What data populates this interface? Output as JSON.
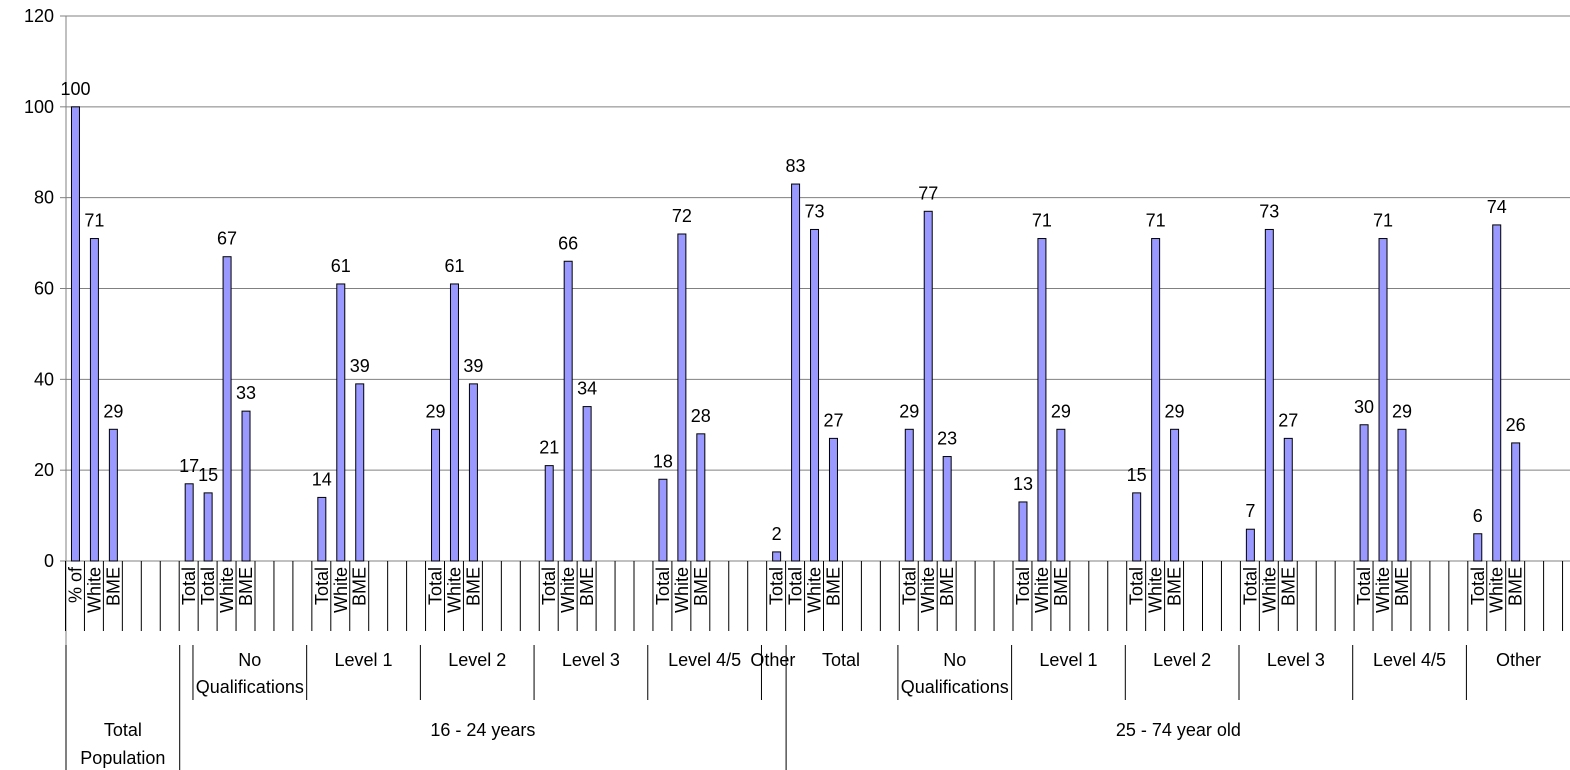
{
  "chart_data": {
    "type": "bar",
    "title": "",
    "xlabel": "",
    "ylabel": "",
    "ylim": [
      0,
      120
    ],
    "yticks": [
      0,
      20,
      40,
      60,
      80,
      100,
      120
    ],
    "grid": true,
    "legend": "none",
    "colors": {
      "bar_fill": "#9999ff",
      "bar_stroke": "#000000",
      "grid": "#808080",
      "axis": "#808080"
    },
    "groups": [
      {
        "label": "Total Population",
        "subgroups": [
          {
            "label": "",
            "bars": [
              {
                "label": "% of",
                "value": 100
              },
              {
                "label": "White",
                "value": 71
              },
              {
                "label": "BME",
                "value": 29
              }
            ]
          }
        ]
      },
      {
        "label": "16 - 24 years",
        "subgroups": [
          {
            "label": "",
            "bars": [
              {
                "label": "Total",
                "value": 17
              }
            ]
          },
          {
            "label": "No Qualifications",
            "bars": [
              {
                "label": "Total",
                "value": 15
              },
              {
                "label": "White",
                "value": 67
              },
              {
                "label": "BME",
                "value": 33
              }
            ]
          },
          {
            "label": "Level 1",
            "bars": [
              {
                "label": "Total",
                "value": 14
              },
              {
                "label": "White",
                "value": 61
              },
              {
                "label": "BME",
                "value": 39
              }
            ]
          },
          {
            "label": "Level 2",
            "bars": [
              {
                "label": "Total",
                "value": 29
              },
              {
                "label": "White",
                "value": 61
              },
              {
                "label": "BME",
                "value": 39
              }
            ]
          },
          {
            "label": "Level 3",
            "bars": [
              {
                "label": "Total",
                "value": 21
              },
              {
                "label": "White",
                "value": 66
              },
              {
                "label": "BME",
                "value": 34
              }
            ]
          },
          {
            "label": "Level 4/5",
            "bars": [
              {
                "label": "Total",
                "value": 18
              },
              {
                "label": "White",
                "value": 72
              },
              {
                "label": "BME",
                "value": 28
              }
            ]
          },
          {
            "label": "Other",
            "bars": [
              {
                "label": "Total",
                "value": 2
              }
            ]
          }
        ]
      },
      {
        "label": "25 - 74 year old",
        "subgroups": [
          {
            "label": "Total",
            "bars": [
              {
                "label": "Total",
                "value": 83
              },
              {
                "label": "White",
                "value": 73
              },
              {
                "label": "BME",
                "value": 27
              }
            ]
          },
          {
            "label": "No Qualifications",
            "bars": [
              {
                "label": "Total",
                "value": 29
              },
              {
                "label": "White",
                "value": 77
              },
              {
                "label": "BME",
                "value": 23
              }
            ]
          },
          {
            "label": "Level 1",
            "bars": [
              {
                "label": "Total",
                "value": 13
              },
              {
                "label": "White",
                "value": 71
              },
              {
                "label": "BME",
                "value": 29
              }
            ]
          },
          {
            "label": "Level 2",
            "bars": [
              {
                "label": "Total",
                "value": 15
              },
              {
                "label": "White",
                "value": 71
              },
              {
                "label": "BME",
                "value": 29
              }
            ]
          },
          {
            "label": "Level 3",
            "bars": [
              {
                "label": "Total",
                "value": 7
              },
              {
                "label": "White",
                "value": 73
              },
              {
                "label": "BME",
                "value": 27
              }
            ]
          },
          {
            "label": "Level 4/5",
            "bars": [
              {
                "label": "Total",
                "value": 30
              },
              {
                "label": "White",
                "value": 71
              },
              {
                "label": "BME",
                "value": 29
              }
            ]
          },
          {
            "label": "Other",
            "bars": [
              {
                "label": "Total",
                "value": 6
              },
              {
                "label": "White",
                "value": 74
              },
              {
                "label": "BME",
                "value": 26
              }
            ]
          }
        ]
      }
    ]
  }
}
